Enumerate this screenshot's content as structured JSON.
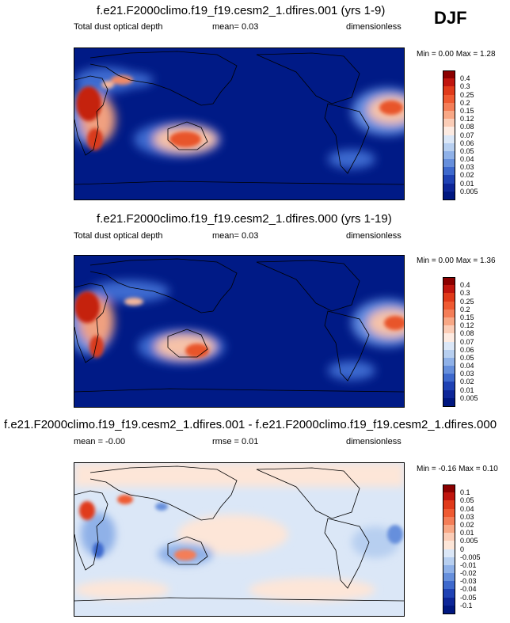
{
  "season": "DJF",
  "panels": [
    {
      "title": "f.e21.F2000climo.f19_f19.cesm2_1.dfires.001 (yrs 1-9)",
      "left_label": "Total dust optical depth",
      "center_label": "mean=  0.03",
      "right_label": "dimensionless",
      "minmax": "Min =  0.00 Max =  1.28",
      "colorbar": {
        "levels": [
          "0.4",
          "0.3",
          "0.25",
          "0.2",
          "0.15",
          "0.12",
          "0.08",
          "0.07",
          "0.06",
          "0.05",
          "0.04",
          "0.03",
          "0.02",
          "0.01",
          "0.005"
        ],
        "colors": [
          "#8b0000",
          "#c0150e",
          "#e03a1a",
          "#ef5a32",
          "#f47e58",
          "#f8a886",
          "#fbcdb7",
          "#fdebe2",
          "#dbe7f7",
          "#b7cff0",
          "#8fb1e8",
          "#668fdc",
          "#3e69cd",
          "#1f42b4",
          "#0d2698",
          "#001780"
        ]
      }
    },
    {
      "title": "f.e21.F2000climo.f19_f19.cesm2_1.dfires.000 (yrs 1-19)",
      "left_label": "Total dust optical depth",
      "center_label": "mean=  0.03",
      "right_label": "dimensionless",
      "minmax": "Min =  0.00 Max =  1.36",
      "colorbar": {
        "levels": [
          "0.4",
          "0.3",
          "0.25",
          "0.2",
          "0.15",
          "0.12",
          "0.08",
          "0.07",
          "0.06",
          "0.05",
          "0.04",
          "0.03",
          "0.02",
          "0.01",
          "0.005"
        ],
        "colors": [
          "#8b0000",
          "#c0150e",
          "#e03a1a",
          "#ef5a32",
          "#f47e58",
          "#f8a886",
          "#fbcdb7",
          "#fdebe2",
          "#dbe7f7",
          "#b7cff0",
          "#8fb1e8",
          "#668fdc",
          "#3e69cd",
          "#1f42b4",
          "#0d2698",
          "#001780"
        ]
      }
    },
    {
      "title": "f.e21.F2000climo.f19_f19.cesm2_1.dfires.001 - f.e21.F2000climo.f19_f19.cesm2_1.dfires.000",
      "left_label": "mean = -0.00",
      "center_label": "rmse =  0.01",
      "right_label": "dimensionless",
      "minmax": "Min = -0.16 Max =  0.10",
      "colorbar": {
        "levels": [
          "0.1",
          "0.05",
          "0.04",
          "0.03",
          "0.02",
          "0.01",
          "0.005",
          "0",
          "-0.005",
          "-0.01",
          "-0.02",
          "-0.03",
          "-0.04",
          "-0.05",
          "-0.1"
        ],
        "colors": [
          "#8b0000",
          "#c0150e",
          "#e03a1a",
          "#ef5a32",
          "#f47e58",
          "#f8a886",
          "#fbcdb7",
          "#fde6d8",
          "#dbe7f7",
          "#b7cff0",
          "#8fb1e8",
          "#668fdc",
          "#3e69cd",
          "#1f42b4",
          "#0d2698",
          "#001780"
        ]
      }
    }
  ]
}
